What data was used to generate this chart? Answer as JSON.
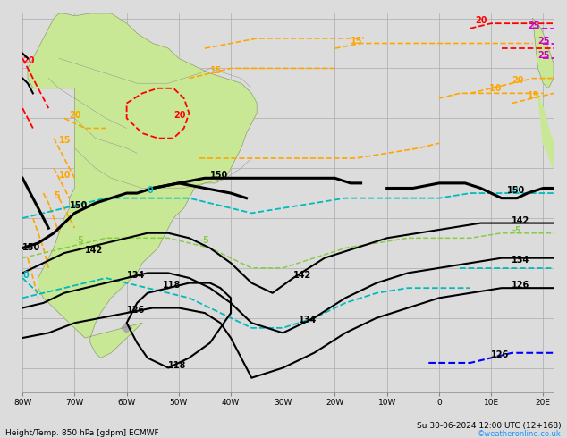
{
  "title_bottom_left": "Height/Temp. 850 hPa [gdpm] ECMWF",
  "title_bottom_right": "Su 30-06-2024 12:00 UTC (12+168)",
  "credit": "©weatheronline.co.uk",
  "bg_land": "#c8e896",
  "bg_sea": "#dcdcdc",
  "bg_figure": "#dcdcdc",
  "grid_color": "#aaaaaa",
  "border_color": "#888888",
  "figsize": [
    6.34,
    4.9
  ],
  "dpi": 100,
  "xlim": [
    -80,
    22
  ],
  "ylim": [
    -65,
    11
  ]
}
